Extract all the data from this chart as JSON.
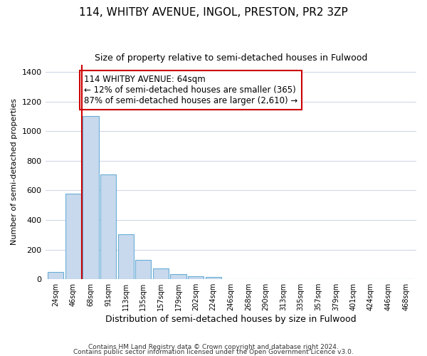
{
  "title_line1": "114, WHITBY AVENUE, INGOL, PRESTON, PR2 3ZP",
  "title_line2": "Size of property relative to semi-detached houses in Fulwood",
  "xlabel": "Distribution of semi-detached houses by size in Fulwood",
  "ylabel": "Number of semi-detached properties",
  "annotation_line1": "114 WHITBY AVENUE: 64sqm",
  "annotation_line2": "← 12% of semi-detached houses are smaller (365)",
  "annotation_line3": "87% of semi-detached houses are larger (2,610) →",
  "footer1": "Contains HM Land Registry data © Crown copyright and database right 2024.",
  "footer2": "Contains public sector information licensed under the Open Government Licence v3.0.",
  "bar_color": "#c8d9ee",
  "bar_edge_color": "#6aaed6",
  "annotation_box_facecolor": "#ffffff",
  "annotation_box_edgecolor": "#cc0000",
  "vline_color": "#cc0000",
  "categories": [
    "24sqm",
    "46sqm",
    "68sqm",
    "91sqm",
    "113sqm",
    "135sqm",
    "157sqm",
    "179sqm",
    "202sqm",
    "224sqm",
    "246sqm",
    "268sqm",
    "290sqm",
    "313sqm",
    "335sqm",
    "357sqm",
    "379sqm",
    "401sqm",
    "424sqm",
    "446sqm",
    "468sqm"
  ],
  "values": [
    50,
    580,
    1100,
    710,
    305,
    130,
    75,
    35,
    20,
    15,
    0,
    0,
    0,
    0,
    0,
    0,
    0,
    0,
    0,
    0,
    0
  ],
  "vline_position": 2,
  "ylim": [
    0,
    1450
  ],
  "yticks": [
    0,
    200,
    400,
    600,
    800,
    1000,
    1200,
    1400
  ],
  "background_color": "#ffffff",
  "plot_bg_color": "#ffffff",
  "grid_color": "#d0d8e8",
  "title_fontsize": 11,
  "subtitle_fontsize": 9,
  "ylabel_fontsize": 8,
  "xlabel_fontsize": 9,
  "footer_fontsize": 6.5
}
